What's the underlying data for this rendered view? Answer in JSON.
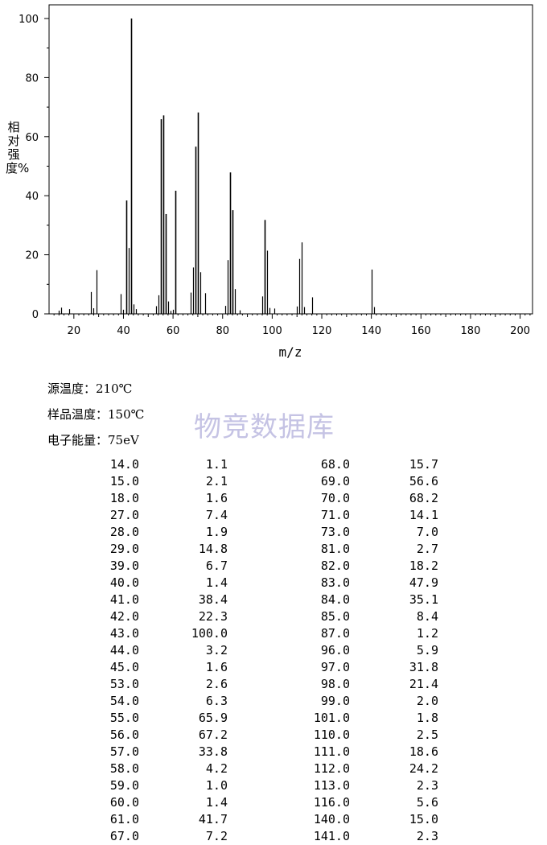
{
  "chart_data": {
    "type": "bar",
    "xlabel": "m/z",
    "ylabel": "相对强度%",
    "xlim": [
      10,
      205
    ],
    "ylim": [
      0,
      100
    ],
    "x_ticks": [
      20,
      40,
      60,
      80,
      100,
      120,
      140,
      160,
      180,
      200
    ],
    "y_ticks": [
      0,
      20,
      40,
      60,
      80,
      100
    ],
    "grid": false,
    "peaks": [
      {
        "mz": 14.0,
        "intensity": 1.1
      },
      {
        "mz": 15.0,
        "intensity": 2.1
      },
      {
        "mz": 18.0,
        "intensity": 1.6
      },
      {
        "mz": 27.0,
        "intensity": 7.4
      },
      {
        "mz": 28.0,
        "intensity": 1.9
      },
      {
        "mz": 29.0,
        "intensity": 14.8
      },
      {
        "mz": 39.0,
        "intensity": 6.7
      },
      {
        "mz": 40.0,
        "intensity": 1.4
      },
      {
        "mz": 41.0,
        "intensity": 38.4
      },
      {
        "mz": 42.0,
        "intensity": 22.3
      },
      {
        "mz": 43.0,
        "intensity": 100.0
      },
      {
        "mz": 44.0,
        "intensity": 3.2
      },
      {
        "mz": 45.0,
        "intensity": 1.6
      },
      {
        "mz": 53.0,
        "intensity": 2.6
      },
      {
        "mz": 54.0,
        "intensity": 6.3
      },
      {
        "mz": 55.0,
        "intensity": 65.9
      },
      {
        "mz": 56.0,
        "intensity": 67.2
      },
      {
        "mz": 57.0,
        "intensity": 33.8
      },
      {
        "mz": 58.0,
        "intensity": 4.2
      },
      {
        "mz": 59.0,
        "intensity": 1.0
      },
      {
        "mz": 60.0,
        "intensity": 1.4
      },
      {
        "mz": 61.0,
        "intensity": 41.7
      },
      {
        "mz": 67.0,
        "intensity": 7.2
      },
      {
        "mz": 68.0,
        "intensity": 15.7
      },
      {
        "mz": 69.0,
        "intensity": 56.6
      },
      {
        "mz": 70.0,
        "intensity": 68.2
      },
      {
        "mz": 71.0,
        "intensity": 14.1
      },
      {
        "mz": 73.0,
        "intensity": 7.0
      },
      {
        "mz": 81.0,
        "intensity": 2.7
      },
      {
        "mz": 82.0,
        "intensity": 18.2
      },
      {
        "mz": 83.0,
        "intensity": 47.9
      },
      {
        "mz": 84.0,
        "intensity": 35.1
      },
      {
        "mz": 85.0,
        "intensity": 8.4
      },
      {
        "mz": 87.0,
        "intensity": 1.2
      },
      {
        "mz": 96.0,
        "intensity": 5.9
      },
      {
        "mz": 97.0,
        "intensity": 31.8
      },
      {
        "mz": 98.0,
        "intensity": 21.4
      },
      {
        "mz": 99.0,
        "intensity": 2.0
      },
      {
        "mz": 101.0,
        "intensity": 1.8
      },
      {
        "mz": 110.0,
        "intensity": 2.5
      },
      {
        "mz": 111.0,
        "intensity": 18.6
      },
      {
        "mz": 112.0,
        "intensity": 24.2
      },
      {
        "mz": 113.0,
        "intensity": 2.3
      },
      {
        "mz": 116.0,
        "intensity": 5.6
      },
      {
        "mz": 140.0,
        "intensity": 15.0
      },
      {
        "mz": 141.0,
        "intensity": 2.3
      }
    ]
  },
  "info": {
    "source_temp": "源温度：210℃",
    "sample_temp": "样品温度：150℃",
    "electron_energy": "电子能量：75eV"
  },
  "watermark": "物竞数据库",
  "colors": {
    "watermark": "#c5c3e4",
    "bars": "#000000"
  },
  "table": {
    "left": [
      [
        "14.0",
        "1.1"
      ],
      [
        "15.0",
        "2.1"
      ],
      [
        "18.0",
        "1.6"
      ],
      [
        "27.0",
        "7.4"
      ],
      [
        "28.0",
        "1.9"
      ],
      [
        "29.0",
        "14.8"
      ],
      [
        "39.0",
        "6.7"
      ],
      [
        "40.0",
        "1.4"
      ],
      [
        "41.0",
        "38.4"
      ],
      [
        "42.0",
        "22.3"
      ],
      [
        "43.0",
        "100.0"
      ],
      [
        "44.0",
        "3.2"
      ],
      [
        "45.0",
        "1.6"
      ],
      [
        "53.0",
        "2.6"
      ],
      [
        "54.0",
        "6.3"
      ],
      [
        "55.0",
        "65.9"
      ],
      [
        "56.0",
        "67.2"
      ],
      [
        "57.0",
        "33.8"
      ],
      [
        "58.0",
        "4.2"
      ],
      [
        "59.0",
        "1.0"
      ],
      [
        "60.0",
        "1.4"
      ],
      [
        "61.0",
        "41.7"
      ],
      [
        "67.0",
        "7.2"
      ]
    ],
    "right": [
      [
        "68.0",
        "15.7"
      ],
      [
        "69.0",
        "56.6"
      ],
      [
        "70.0",
        "68.2"
      ],
      [
        "71.0",
        "14.1"
      ],
      [
        "73.0",
        "7.0"
      ],
      [
        "81.0",
        "2.7"
      ],
      [
        "82.0",
        "18.2"
      ],
      [
        "83.0",
        "47.9"
      ],
      [
        "84.0",
        "35.1"
      ],
      [
        "85.0",
        "8.4"
      ],
      [
        "87.0",
        "1.2"
      ],
      [
        "96.0",
        "5.9"
      ],
      [
        "97.0",
        "31.8"
      ],
      [
        "98.0",
        "21.4"
      ],
      [
        "99.0",
        "2.0"
      ],
      [
        "101.0",
        "1.8"
      ],
      [
        "110.0",
        "2.5"
      ],
      [
        "111.0",
        "18.6"
      ],
      [
        "112.0",
        "24.2"
      ],
      [
        "113.0",
        "2.3"
      ],
      [
        "116.0",
        "5.6"
      ],
      [
        "140.0",
        "15.0"
      ],
      [
        "141.0",
        "2.3"
      ]
    ]
  }
}
